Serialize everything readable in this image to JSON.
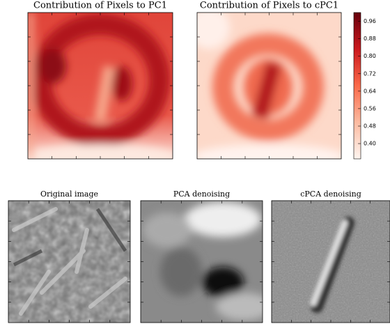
{
  "chart_data": [
    {
      "type": "heatmap",
      "title": "Contribution of Pixels to PC1"
    },
    {
      "type": "heatmap",
      "title": "Contribution of Pixels to cPC1",
      "colorbar": {
        "ylim": [
          0.33,
          1.0
        ],
        "yticks": [
          {
            "value": 0.4,
            "label": "0.40"
          },
          {
            "value": 0.48,
            "label": "0.48"
          },
          {
            "value": 0.56,
            "label": "0.56"
          },
          {
            "value": 0.64,
            "label": "0.64"
          },
          {
            "value": 0.72,
            "label": "0.72"
          },
          {
            "value": 0.8,
            "label": "0.80"
          },
          {
            "value": 0.88,
            "label": "0.88"
          },
          {
            "value": 0.96,
            "label": "0.96"
          }
        ]
      }
    },
    {
      "type": "image",
      "title": "Original image"
    },
    {
      "type": "image",
      "title": "PCA denoising"
    },
    {
      "type": "image",
      "title": "cPCA denoising"
    }
  ]
}
